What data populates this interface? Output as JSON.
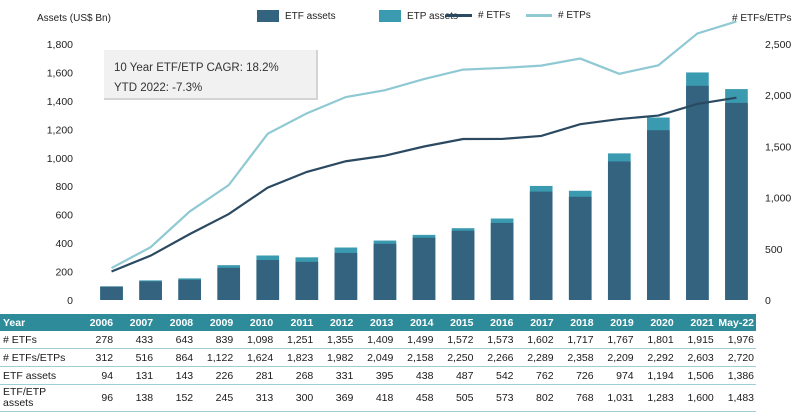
{
  "chart_data": {
    "type": "bar",
    "ylabel": "Assets (US$ Bn)",
    "y2label": "# ETFs/ETPs",
    "ylim": [
      0,
      1800
    ],
    "y2lim": [
      0,
      2500
    ],
    "yticks": [
      "0",
      "200",
      "400",
      "600",
      "800",
      "1,000",
      "1,200",
      "1,400",
      "1,600",
      "1,800"
    ],
    "y2ticks": [
      "0",
      "500",
      "1,000",
      "1,500",
      "2,000",
      "2,500"
    ],
    "categories": [
      "2006",
      "2007",
      "2008",
      "2009",
      "2010",
      "2011",
      "2012",
      "2013",
      "2014",
      "2015",
      "2016",
      "2017",
      "2018",
      "2019",
      "2020",
      "2021",
      "May-22"
    ],
    "series": [
      {
        "name": "ETF assets",
        "type": "bar",
        "color": "#34637f",
        "values": [
          94,
          131,
          143,
          226,
          281,
          268,
          331,
          395,
          438,
          487,
          542,
          762,
          726,
          974,
          1194,
          1506,
          1386
        ]
      },
      {
        "name": "ETP assets",
        "type": "bar",
        "color": "#3a9bb0",
        "values": [
          96,
          138,
          152,
          245,
          313,
          300,
          369,
          418,
          458,
          505,
          573,
          802,
          768,
          1031,
          1283,
          1600,
          1483
        ]
      },
      {
        "name": "# ETFs",
        "type": "line",
        "axis": "right",
        "color": "#2b4a62",
        "values": [
          278,
          433,
          643,
          839,
          1098,
          1251,
          1355,
          1409,
          1499,
          1572,
          1573,
          1602,
          1717,
          1767,
          1801,
          1915,
          1976
        ]
      },
      {
        "name": "# ETPs",
        "type": "line",
        "axis": "right",
        "color": "#8fc9d3",
        "values": [
          312,
          516,
          864,
          1122,
          1624,
          1823,
          1982,
          2049,
          2158,
          2250,
          2266,
          2289,
          2358,
          2209,
          2292,
          2603,
          2720
        ]
      }
    ],
    "legend_position": "top",
    "annotation": [
      "10 Year ETF/ETP CAGR: 18.2%",
      "YTD 2022: -7.3%"
    ]
  },
  "table": {
    "header_label": "Year",
    "rows": [
      {
        "label": "# ETFs",
        "values": [
          "278",
          "433",
          "643",
          "839",
          "1,098",
          "1,251",
          "1,355",
          "1,409",
          "1,499",
          "1,572",
          "1,573",
          "1,602",
          "1,717",
          "1,767",
          "1,801",
          "1,915",
          "1,976"
        ]
      },
      {
        "label": "# ETFs/ETPs",
        "values": [
          "312",
          "516",
          "864",
          "1,122",
          "1,624",
          "1,823",
          "1,982",
          "2,049",
          "2,158",
          "2,250",
          "2,266",
          "2,289",
          "2,358",
          "2,209",
          "2,292",
          "2,603",
          "2,720"
        ]
      },
      {
        "label": "ETF assets",
        "values": [
          "94",
          "131",
          "143",
          "226",
          "281",
          "268",
          "331",
          "395",
          "438",
          "487",
          "542",
          "762",
          "726",
          "974",
          "1,194",
          "1,506",
          "1,386"
        ]
      },
      {
        "label": "ETF/ETP assets",
        "values": [
          "96",
          "138",
          "152",
          "245",
          "313",
          "300",
          "369",
          "418",
          "458",
          "505",
          "573",
          "802",
          "768",
          "1,031",
          "1,283",
          "1,600",
          "1,483"
        ]
      }
    ]
  }
}
